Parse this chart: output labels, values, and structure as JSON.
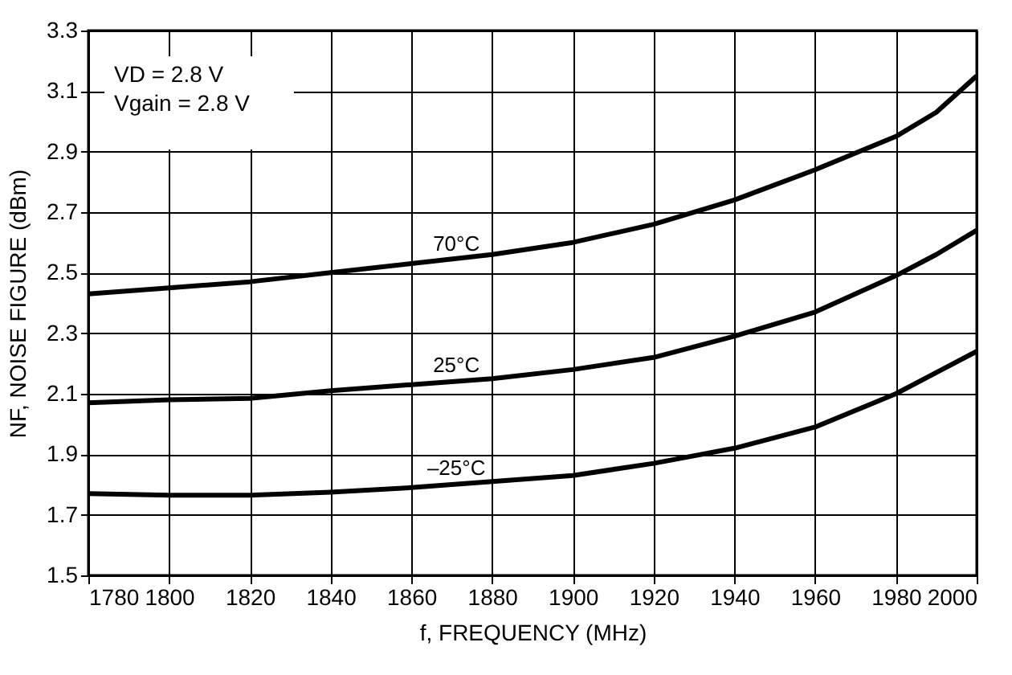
{
  "chart_data": {
    "type": "line",
    "xlabel": "f, FREQUENCY (MHz)",
    "ylabel": "NF, NOISE FIGURE (dBm)",
    "x": [
      1780,
      1800,
      1820,
      1840,
      1860,
      1880,
      1900,
      1920,
      1940,
      1960,
      1980,
      1990,
      2000
    ],
    "series": [
      {
        "name": "70°C",
        "color": "#000000",
        "values": [
          2.43,
          2.45,
          2.47,
          2.5,
          2.53,
          2.56,
          2.6,
          2.66,
          2.74,
          2.84,
          2.95,
          3.03,
          3.15
        ]
      },
      {
        "name": "25°C",
        "color": "#000000",
        "values": [
          2.07,
          2.08,
          2.085,
          2.11,
          2.13,
          2.15,
          2.18,
          2.22,
          2.29,
          2.37,
          2.49,
          2.56,
          2.64
        ]
      },
      {
        "name": "–25°C",
        "color": "#000000",
        "values": [
          1.77,
          1.765,
          1.765,
          1.775,
          1.79,
          1.81,
          1.83,
          1.87,
          1.92,
          1.99,
          2.1,
          2.17,
          2.24
        ]
      }
    ],
    "xlim": [
      1780,
      2000
    ],
    "xticks": [
      1780,
      1800,
      1820,
      1840,
      1860,
      1880,
      1900,
      1920,
      1940,
      1960,
      1980,
      2000
    ],
    "ylim": [
      1.5,
      3.3
    ],
    "yticks": [
      1.5,
      1.7,
      1.9,
      2.1,
      2.3,
      2.5,
      2.7,
      2.9,
      3.1,
      3.3
    ],
    "grid": true,
    "marker": "none",
    "line_style": "solid",
    "annotations": [
      "VD = 2.8 V",
      "Vgain = 2.8 V"
    ]
  }
}
